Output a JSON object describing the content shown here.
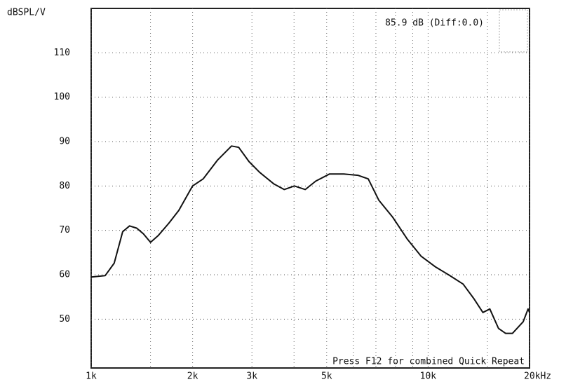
{
  "chart_data": {
    "type": "line",
    "title": "85.9 dB (Diff:0.0)",
    "y_label": "dBSPL/V",
    "annotation": "Press F12 for combined Quick Repeat",
    "log_x": true,
    "grid": true,
    "xlim": [
      1000,
      20000
    ],
    "ylim": [
      39,
      120
    ],
    "xticks": [
      {
        "value": 1000,
        "label": "1k"
      },
      {
        "value": 2000,
        "label": "2k"
      },
      {
        "value": 3000,
        "label": "3k"
      },
      {
        "value": 5000,
        "label": "5k"
      },
      {
        "value": 10000,
        "label": "10k"
      },
      {
        "value": 20000,
        "label": "20kHz"
      }
    ],
    "xminor_ticks": [
      1500,
      4000,
      6000,
      7000,
      8000,
      9000,
      15000
    ],
    "yticks": [
      50,
      60,
      70,
      80,
      90,
      100,
      110
    ],
    "x": [
      1000,
      1100,
      1170,
      1240,
      1300,
      1365,
      1430,
      1500,
      1580,
      1700,
      1820,
      2000,
      2150,
      2370,
      2610,
      2740,
      2940,
      3160,
      3480,
      3740,
      4010,
      4320,
      4640,
      5100,
      5620,
      6190,
      6640,
      7140,
      7860,
      8660,
      9530,
      10500,
      11550,
      12700,
      13650,
      14540,
      15250,
      16180,
      16980,
      17800,
      19150,
      19800,
      20000
    ],
    "series": [
      {
        "name": "SPL",
        "color": "#111111",
        "values": [
          59.5,
          59.8,
          62.6,
          69.7,
          71,
          70.5,
          69.2,
          67.3,
          68.8,
          71.6,
          74.5,
          80,
          81.6,
          85.8,
          89,
          88.7,
          85.5,
          83.1,
          80.5,
          79.2,
          80,
          79.2,
          81.1,
          82.7,
          82.7,
          82.4,
          81.6,
          76.8,
          72.9,
          68.1,
          64.2,
          61.8,
          59.9,
          57.9,
          54.7,
          51.5,
          52.3,
          47.9,
          46.8,
          46.8,
          49.4,
          52.3,
          51.5
        ]
      }
    ]
  }
}
